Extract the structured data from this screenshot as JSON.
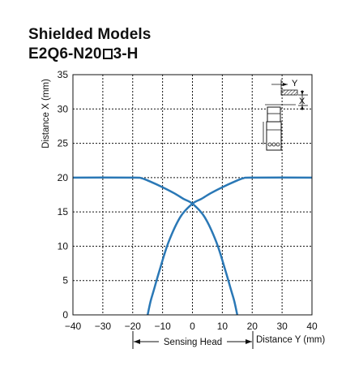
{
  "header": {
    "title_line1": "Shielded Models",
    "title_line2_prefix": "E2Q6-N20",
    "title_line2_suffix": "3-H"
  },
  "chart_data": {
    "type": "line",
    "xlabel": "Distance Y (mm)",
    "ylabel": "Distance X (mm)",
    "xlim": [
      -40,
      40
    ],
    "ylim": [
      0,
      35
    ],
    "xticks": [
      -40,
      -30,
      -20,
      -10,
      0,
      10,
      20,
      30,
      40
    ],
    "yticks": [
      0,
      5,
      10,
      15,
      20,
      25,
      30,
      35
    ],
    "x_tick_labels": [
      "−40",
      "−30",
      "−20",
      "−10",
      "0",
      "10",
      "20",
      "30",
      "40"
    ],
    "grid": true,
    "annotations": {
      "sensing_head_label": "Sensing Head",
      "inset_label_y": "Y",
      "inset_label_x": "X"
    },
    "series": [
      {
        "color": "#2a78b6",
        "points": [
          [
            -40,
            20
          ],
          [
            -20,
            20
          ],
          [
            -17,
            19.9
          ],
          [
            -14,
            19.4
          ],
          [
            -10,
            18.6
          ],
          [
            -6,
            17.7
          ],
          [
            -3,
            16.9
          ],
          [
            0,
            16.2
          ],
          [
            4,
            14.3
          ],
          [
            8,
            10.6
          ],
          [
            11,
            6.5
          ],
          [
            13,
            3.5
          ],
          [
            14,
            2
          ],
          [
            15,
            0
          ]
        ]
      },
      {
        "color": "#2a78b6",
        "points": [
          [
            -15,
            0
          ],
          [
            -14,
            2
          ],
          [
            -13,
            3.5
          ],
          [
            -11,
            6.5
          ],
          [
            -8,
            10.6
          ],
          [
            -4,
            14.3
          ],
          [
            0,
            16.2
          ],
          [
            3,
            16.9
          ],
          [
            6,
            17.7
          ],
          [
            10,
            18.6
          ],
          [
            14,
            19.4
          ],
          [
            17,
            19.9
          ],
          [
            20,
            20
          ],
          [
            40,
            20
          ]
        ]
      }
    ]
  }
}
